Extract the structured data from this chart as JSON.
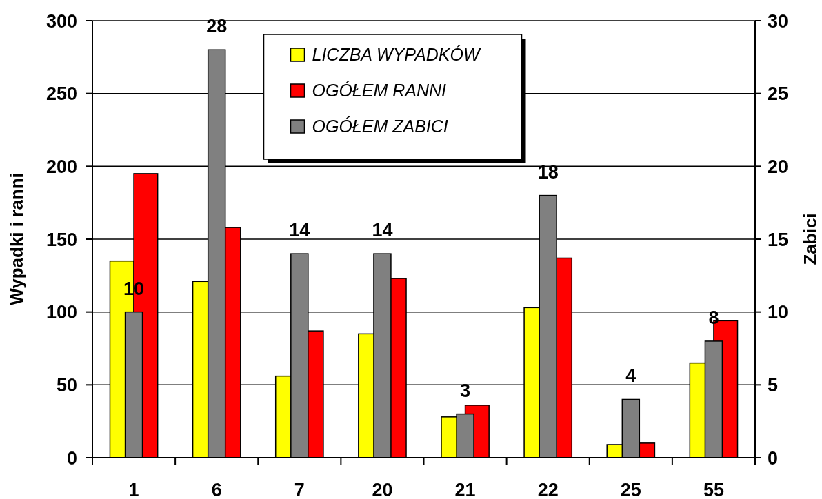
{
  "chart_data": {
    "type": "bar",
    "categories": [
      "1",
      "6",
      "7",
      "20",
      "21",
      "22",
      "25",
      "55"
    ],
    "ylabel": "Wypadki i ranni",
    "y2label": "Zabici",
    "ylim": [
      0,
      300
    ],
    "yticks": [
      0,
      50,
      100,
      150,
      200,
      250,
      300
    ],
    "y2lim": [
      0,
      30
    ],
    "y2ticks": [
      0,
      5,
      10,
      15,
      20,
      25,
      30
    ],
    "grid": "y",
    "legend": "top",
    "series": [
      {
        "name": "LICZBA WYPADKÓW",
        "color": "#ffff00",
        "values": [
          135,
          121,
          56,
          85,
          28,
          103,
          9,
          65
        ]
      },
      {
        "name": "OGÓŁEM RANNI",
        "color": "#ff0000",
        "values": [
          195,
          158,
          87,
          123,
          36,
          137,
          10,
          94
        ]
      },
      {
        "name": "OGÓŁEM ZABICI",
        "color": "#808080",
        "axis": "y2",
        "values": [
          10,
          28,
          14,
          14,
          3,
          18,
          4,
          8
        ],
        "value_labels": [
          "10",
          "28",
          "14",
          "14",
          "3",
          "18",
          "4",
          "8"
        ]
      }
    ]
  }
}
